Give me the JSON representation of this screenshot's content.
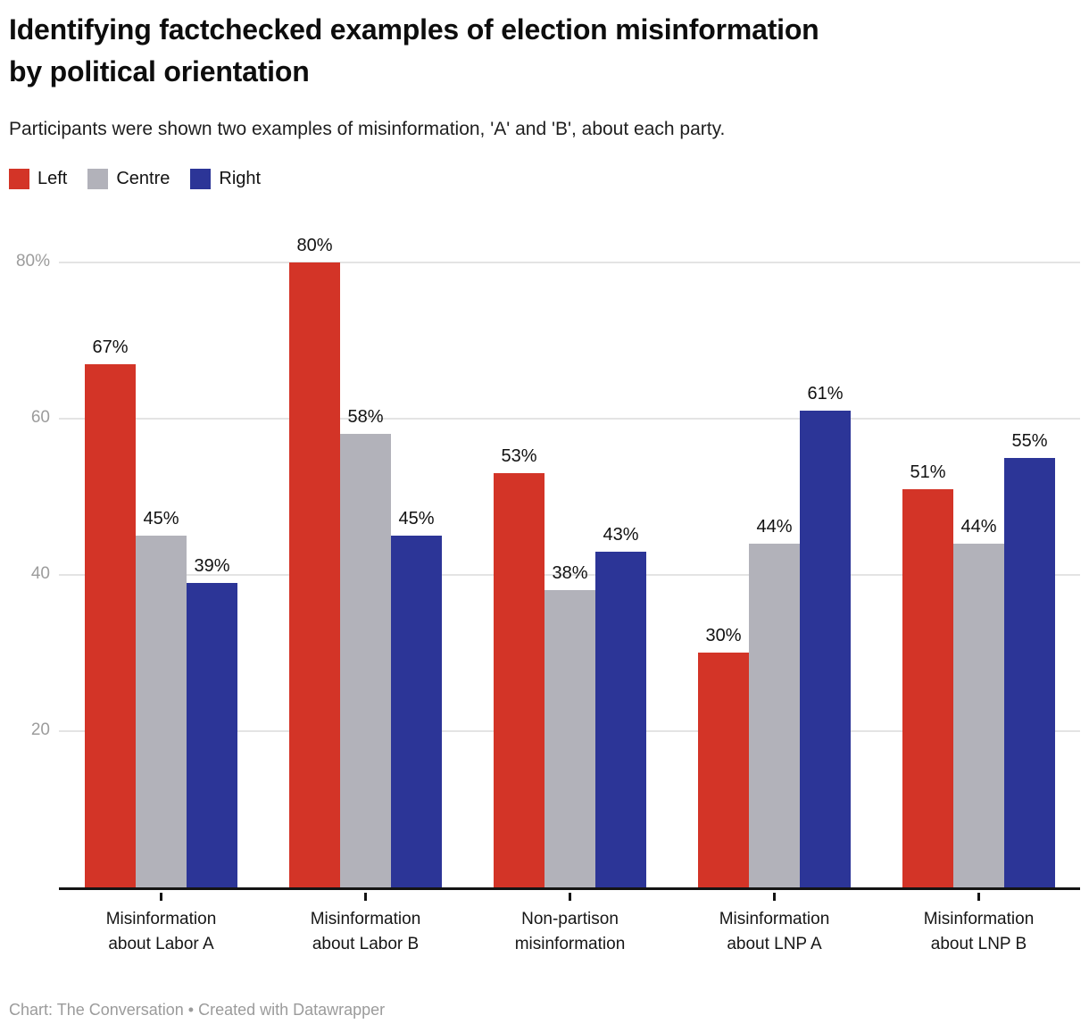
{
  "header": {
    "title": "Identifying factchecked examples of election misinformation by political orientation",
    "subtitle": "Participants were shown two examples of misinformation, 'A' and 'B', about each party."
  },
  "legend": {
    "items": [
      {
        "label": "Left",
        "color": "#d33427"
      },
      {
        "label": "Centre",
        "color": "#b2b2ba"
      },
      {
        "label": "Right",
        "color": "#2c3597"
      }
    ]
  },
  "footer": {
    "credit": "Chart: The Conversation • Created with Datawrapper"
  },
  "chart_data": {
    "type": "bar",
    "title": "Identifying factchecked examples of election misinformation by political orientation",
    "subtitle": "Participants were shown two examples of misinformation, 'A' and 'B', about each party.",
    "categories": [
      "Misinformation about Labor A",
      "Misinformation about Labor B",
      "Non-partison misinformation",
      "Misinformation about LNP A",
      "Misinformation about LNP B"
    ],
    "series": [
      {
        "name": "Left",
        "color": "#d33427",
        "values": [
          67,
          80,
          53,
          30,
          51
        ]
      },
      {
        "name": "Centre",
        "color": "#b2b2ba",
        "values": [
          45,
          58,
          38,
          44,
          44
        ]
      },
      {
        "name": "Right",
        "color": "#2c3597",
        "values": [
          39,
          45,
          43,
          61,
          55
        ]
      }
    ],
    "value_suffix": "%",
    "y_ticks": [
      {
        "value": 20,
        "label": "20"
      },
      {
        "value": 40,
        "label": "40"
      },
      {
        "value": 60,
        "label": "60"
      },
      {
        "value": 80,
        "label": "80%"
      }
    ],
    "ylim": [
      0,
      85
    ],
    "xlabel": "",
    "ylabel": "",
    "grid": "horizontal",
    "legend_position": "top-left"
  }
}
